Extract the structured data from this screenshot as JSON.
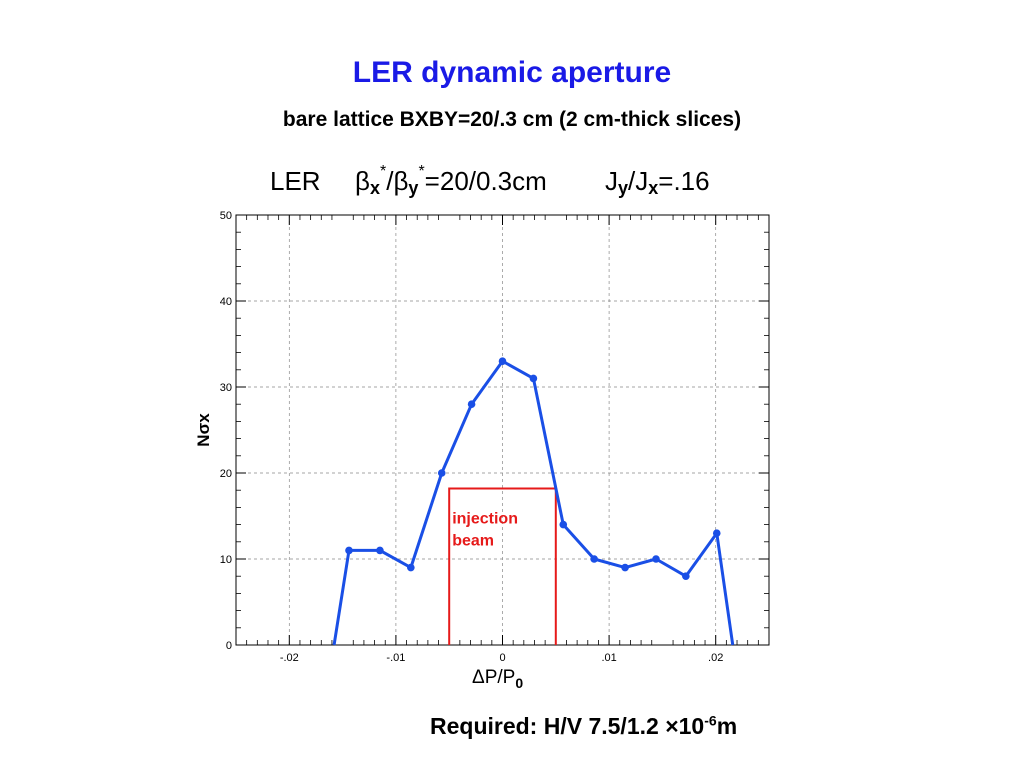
{
  "slide": {
    "title": "LER dynamic aperture",
    "subtitle": "bare lattice  BXBY=20/.3 cm (2 cm-thick slices)",
    "required_prefix": "Required: H/V  7.5/1.2 ",
    "required_times": "×",
    "required_mantissa": "10",
    "required_exponent": "-6",
    "required_unit": "m"
  },
  "chart_data": {
    "type": "line",
    "title_parts": {
      "ring": "LER",
      "beta": "β",
      "sub_x": "x",
      "sub_y": "y",
      "star": "*",
      "slash": "/",
      "ratio": "=20/0.3cm",
      "coupling_J": "J",
      "coupling_slash": "/J",
      "coupling_value": "=.16"
    },
    "xlabel_main": "ΔP/P",
    "xlabel_sub": "0",
    "ylabel": "Nσx",
    "xlim": [
      -0.025,
      0.025
    ],
    "ylim": [
      0,
      50
    ],
    "xticks": [
      -0.02,
      -0.01,
      0,
      0.01,
      0.02
    ],
    "xtick_labels": [
      "-.02",
      "-.01",
      "0",
      ".01",
      ".02"
    ],
    "yticks": [
      0,
      10,
      20,
      30,
      40,
      50
    ],
    "ytick_labels": [
      "0",
      "10",
      "20",
      "30",
      "40",
      "50"
    ],
    "grid": true,
    "series": [
      {
        "color": "#1a4fe6",
        "points": [
          {
            "x": -0.0158,
            "y": 0,
            "marker": false
          },
          {
            "x": -0.0144,
            "y": 11,
            "marker": true
          },
          {
            "x": -0.0115,
            "y": 11,
            "marker": true
          },
          {
            "x": -0.0086,
            "y": 9,
            "marker": true
          },
          {
            "x": -0.0057,
            "y": 20,
            "marker": true
          },
          {
            "x": -0.0029,
            "y": 28,
            "marker": true
          },
          {
            "x": 0.0,
            "y": 33,
            "marker": true
          },
          {
            "x": 0.0029,
            "y": 31,
            "marker": true
          },
          {
            "x": 0.0057,
            "y": 14,
            "marker": true
          },
          {
            "x": 0.0086,
            "y": 10,
            "marker": true
          },
          {
            "x": 0.0115,
            "y": 9,
            "marker": true
          },
          {
            "x": 0.0144,
            "y": 10,
            "marker": true
          },
          {
            "x": 0.0172,
            "y": 8,
            "marker": true
          },
          {
            "x": 0.0201,
            "y": 13,
            "marker": true
          },
          {
            "x": 0.0216,
            "y": 0,
            "marker": false
          }
        ]
      }
    ],
    "annotation": {
      "lines": [
        "injection",
        "beam"
      ],
      "color": "#e61a1a",
      "x_range": [
        -0.005,
        0.005
      ],
      "y_top": 18.2
    }
  }
}
